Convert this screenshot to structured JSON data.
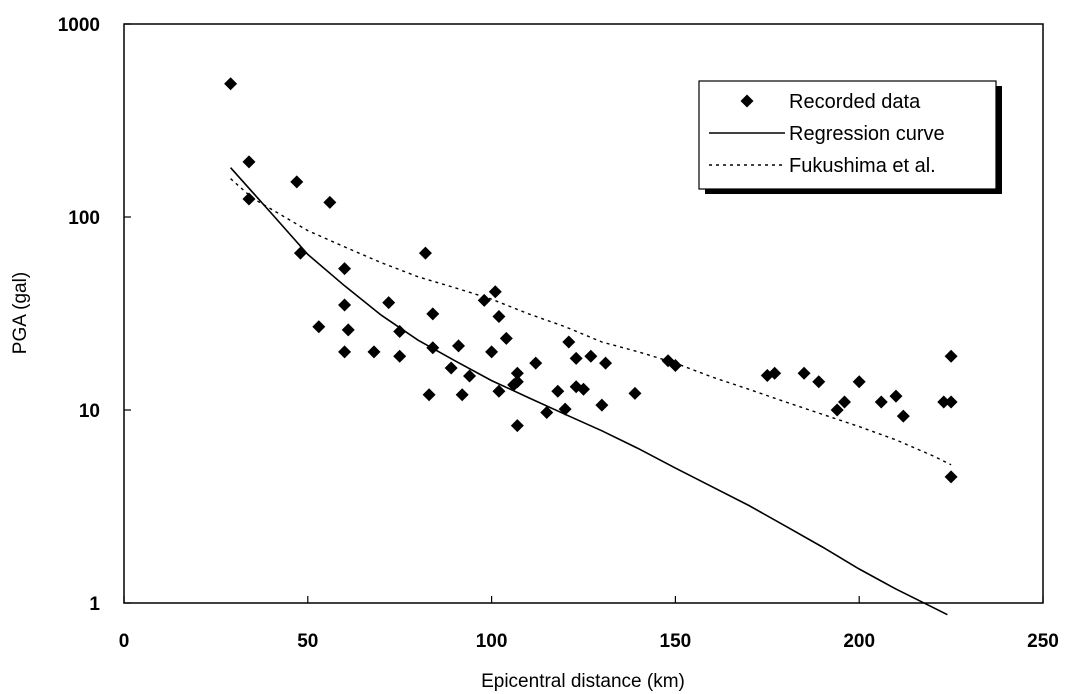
{
  "chart_data": {
    "type": "scatter",
    "title": "",
    "xlabel": "Epicentral distance (km)",
    "ylabel": "PGA (gal)",
    "xlim": [
      0,
      250
    ],
    "ylim": [
      1,
      1000
    ],
    "yscale": "log",
    "grid": false,
    "legend_position": "top-right",
    "x_ticks": [
      0,
      50,
      100,
      150,
      200,
      250
    ],
    "x_tick_labels": [
      "0",
      "50",
      "100",
      "150",
      "200",
      "250"
    ],
    "y_ticks": [
      1,
      10,
      100,
      1000
    ],
    "y_tick_labels": [
      "1",
      "10",
      "100",
      "1000"
    ],
    "series": [
      {
        "name": "Recorded data",
        "kind": "scatter",
        "marker": "diamond",
        "color": "#000000",
        "points": [
          [
            29,
            490
          ],
          [
            34,
            193
          ],
          [
            34,
            124
          ],
          [
            47,
            152
          ],
          [
            48,
            65
          ],
          [
            56,
            119
          ],
          [
            53,
            27
          ],
          [
            60,
            54
          ],
          [
            60,
            35
          ],
          [
            60,
            20
          ],
          [
            61,
            26
          ],
          [
            68,
            20
          ],
          [
            72,
            36
          ],
          [
            75,
            25.5
          ],
          [
            75,
            19
          ],
          [
            82,
            65
          ],
          [
            83,
            12
          ],
          [
            84,
            31.5
          ],
          [
            84,
            21
          ],
          [
            89,
            16.5
          ],
          [
            91,
            21.5
          ],
          [
            92,
            12
          ],
          [
            94,
            15
          ],
          [
            98,
            37
          ],
          [
            100,
            20
          ],
          [
            101,
            41
          ],
          [
            102,
            30.5
          ],
          [
            102,
            12.5
          ],
          [
            104,
            23.5
          ],
          [
            106,
            13.5
          ],
          [
            107,
            14
          ],
          [
            107,
            15.5
          ],
          [
            107,
            8.3
          ],
          [
            112,
            17.5
          ],
          [
            115,
            9.7
          ],
          [
            118,
            12.5
          ],
          [
            120,
            10.1
          ],
          [
            121,
            22.5
          ],
          [
            123,
            18.5
          ],
          [
            123,
            13.2
          ],
          [
            125,
            12.8
          ],
          [
            127,
            19
          ],
          [
            131,
            17.5
          ],
          [
            130,
            10.6
          ],
          [
            139,
            12.2
          ],
          [
            148,
            18
          ],
          [
            150,
            17
          ],
          [
            175,
            15.1
          ],
          [
            177,
            15.5
          ],
          [
            185,
            15.5
          ],
          [
            189,
            14
          ],
          [
            194,
            10
          ],
          [
            196,
            11
          ],
          [
            200,
            14
          ],
          [
            206,
            11
          ],
          [
            210,
            11.8
          ],
          [
            212,
            9.3
          ],
          [
            223,
            11
          ],
          [
            225,
            11
          ],
          [
            225,
            19
          ],
          [
            225,
            4.5
          ]
        ]
      },
      {
        "name": "Regression curve",
        "kind": "line",
        "style": "solid",
        "color": "#000000",
        "points": [
          [
            29,
            180
          ],
          [
            40,
            105
          ],
          [
            50,
            64
          ],
          [
            60,
            44
          ],
          [
            70,
            31
          ],
          [
            80,
            23
          ],
          [
            90,
            18
          ],
          [
            100,
            14.2
          ],
          [
            110,
            11.6
          ],
          [
            120,
            9.5
          ],
          [
            130,
            7.8
          ],
          [
            140,
            6.3
          ],
          [
            150,
            5.0
          ],
          [
            160,
            4.0
          ],
          [
            170,
            3.2
          ],
          [
            180,
            2.5
          ],
          [
            190,
            1.95
          ],
          [
            200,
            1.5
          ],
          [
            210,
            1.18
          ],
          [
            220,
            0.95
          ],
          [
            224,
            0.87
          ]
        ]
      },
      {
        "name": "Fukushima et al.",
        "kind": "line",
        "style": "dotted",
        "color": "#000000",
        "points": [
          [
            29,
            158
          ],
          [
            35,
            125
          ],
          [
            40,
            110
          ],
          [
            50,
            85
          ],
          [
            60,
            70
          ],
          [
            70,
            58
          ],
          [
            80,
            49
          ],
          [
            90,
            43
          ],
          [
            100,
            37.5
          ],
          [
            110,
            31.5
          ],
          [
            120,
            27
          ],
          [
            130,
            22.5
          ],
          [
            140,
            20
          ],
          [
            150,
            17.5
          ],
          [
            160,
            14.8
          ],
          [
            170,
            12.8
          ],
          [
            180,
            11
          ],
          [
            190,
            9.5
          ],
          [
            200,
            8.2
          ],
          [
            210,
            7
          ],
          [
            220,
            5.8
          ],
          [
            225,
            5.2
          ]
        ]
      }
    ]
  }
}
